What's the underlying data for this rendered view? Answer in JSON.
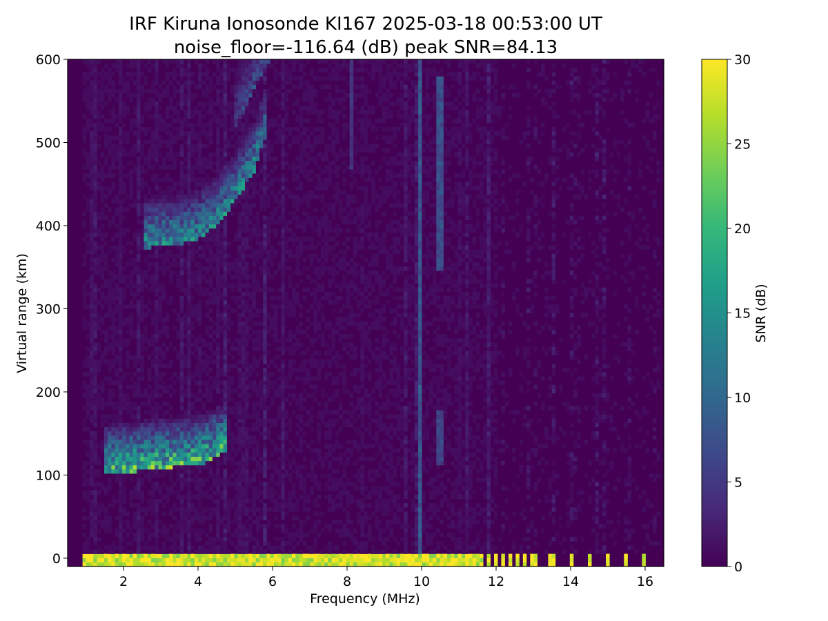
{
  "chart_data": {
    "type": "heatmap",
    "title": "IRF Kiruna Ionosonde KI167 2025-03-18 00:53:00  UT",
    "subtitle": "noise_floor=-116.64 (dB) peak SNR=84.13",
    "xlabel": "Frequency (MHz)",
    "ylabel": "Virtual range (km)",
    "colorbar_label": "SNR (dB)",
    "colormap": "viridis",
    "colormap_stops": [
      "#440154",
      "#482878",
      "#3e4989",
      "#31688e",
      "#26828e",
      "#1f9e89",
      "#35b779",
      "#6ece58",
      "#b5de2b",
      "#fde725"
    ],
    "xlim": [
      0.5,
      16.5
    ],
    "ylim": [
      -10,
      600
    ],
    "clim": [
      0,
      30
    ],
    "x_ticks": [
      2,
      4,
      6,
      8,
      10,
      12,
      14,
      16
    ],
    "y_ticks": [
      0,
      100,
      200,
      300,
      400,
      500
    ],
    "y_ticks_extra": [
      600
    ],
    "cbar_ticks": [
      0,
      5,
      10,
      15,
      20,
      25,
      30
    ],
    "data_extent": {
      "freq": [
        0.9,
        16.4
      ],
      "range": [
        -10,
        600
      ]
    },
    "ground_echo_range": [
      -8,
      6
    ],
    "traces": [
      {
        "name": "E-layer echo",
        "points": [
          [
            1.5,
            105
          ],
          [
            2.0,
            108
          ],
          [
            2.5,
            110
          ],
          [
            3.0,
            113
          ],
          [
            3.5,
            115
          ],
          [
            3.8,
            116
          ],
          [
            4.2,
            120
          ],
          [
            4.8,
            134
          ]
        ],
        "snr": 22
      },
      {
        "name": "F-layer echo",
        "points": [
          [
            2.5,
            378
          ],
          [
            3.0,
            380
          ],
          [
            3.5,
            383
          ],
          [
            4.0,
            388
          ],
          [
            4.5,
            405
          ],
          [
            5.0,
            435
          ],
          [
            5.5,
            470
          ],
          [
            5.8,
            510
          ]
        ],
        "snr": 16
      },
      {
        "name": "F-layer upper",
        "points": [
          [
            5.0,
            520
          ],
          [
            5.6,
            580
          ],
          [
            5.9,
            600
          ]
        ],
        "snr": 8
      }
    ],
    "vertical_streaks": [
      {
        "freq": 9.95,
        "range": [
          0,
          600
        ],
        "snr": 9
      },
      {
        "freq": 10.5,
        "range": [
          345,
          580
        ],
        "snr": 8
      },
      {
        "freq": 8.1,
        "range": [
          470,
          600
        ],
        "snr": 5
      },
      {
        "freq": 10.5,
        "range": [
          110,
          180
        ],
        "snr": 7
      }
    ]
  }
}
